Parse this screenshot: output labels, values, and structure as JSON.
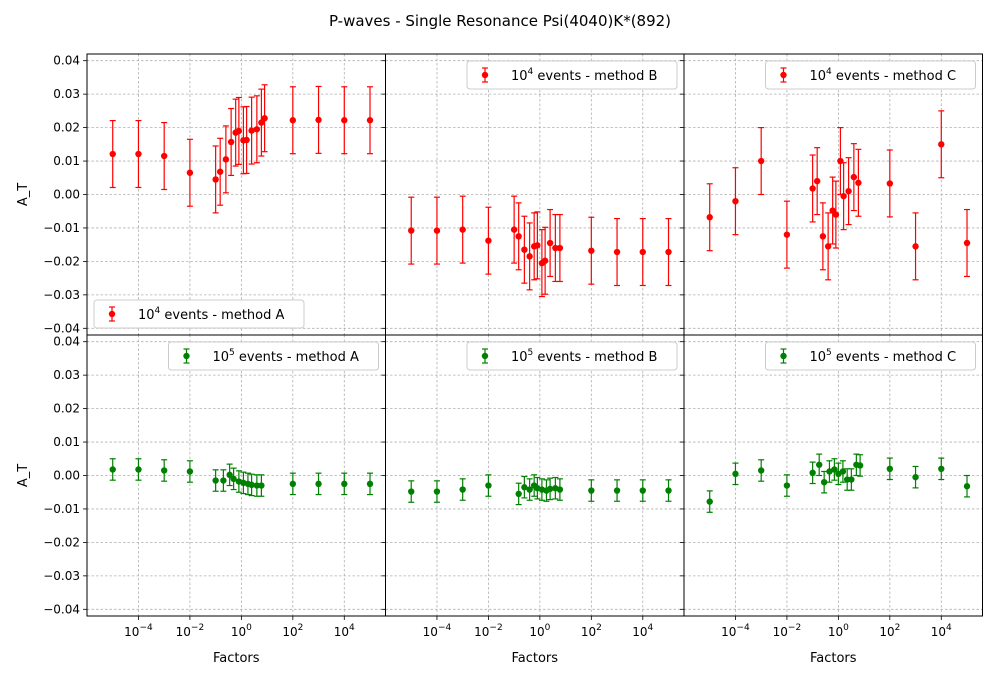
{
  "suptitle": "P-waves - Single Resonance Psi(4040)K*(892)",
  "colors": {
    "red": "#ff0000",
    "green": "#008000"
  },
  "chart_data": {
    "type": "scatter",
    "layout": {
      "rows": 2,
      "cols": 3,
      "sharex": true,
      "sharey": true
    },
    "xscale": "log",
    "xlim": [
      1e-06,
      400000.0
    ],
    "ylim": [
      -0.042,
      0.042
    ],
    "xticks": [
      {
        "value": 0.0001,
        "base": "10",
        "exp": "−4"
      },
      {
        "value": 0.01,
        "base": "10",
        "exp": "−2"
      },
      {
        "value": 1,
        "base": "10",
        "exp": "0"
      },
      {
        "value": 100,
        "base": "10",
        "exp": "2"
      },
      {
        "value": 10000,
        "base": "10",
        "exp": "4"
      }
    ],
    "yticks": [
      {
        "value": 0.04,
        "label": "0.04"
      },
      {
        "value": 0.03,
        "label": "0.03"
      },
      {
        "value": 0.02,
        "label": "0.02"
      },
      {
        "value": 0.01,
        "label": "0.01"
      },
      {
        "value": 0.0,
        "label": "0.00"
      },
      {
        "value": -0.01,
        "label": "−0.01"
      },
      {
        "value": -0.02,
        "label": "−0.02"
      },
      {
        "value": -0.03,
        "label": "−0.03"
      },
      {
        "value": -0.04,
        "label": "−0.04"
      }
    ],
    "xlabel": "Factors",
    "ylabel": "A_T",
    "grid": true,
    "panels": [
      {
        "row": 0,
        "col": 0,
        "color": "#ff0000",
        "legend": {
          "pre": "10",
          "sup": "4",
          "post": " events - method A",
          "loc": "lower-left"
        },
        "x": [
          1e-05,
          0.0001,
          0.001,
          0.01,
          0.1,
          0.15,
          0.25,
          0.4,
          0.6,
          0.8,
          1.2,
          1.6,
          2.5,
          4,
          6,
          8,
          100,
          1000,
          10000,
          100000
        ],
        "y": [
          0.0121,
          0.0121,
          0.0115,
          0.0065,
          0.0045,
          0.0068,
          0.0105,
          0.0157,
          0.0185,
          0.019,
          0.0162,
          0.0163,
          0.0191,
          0.0195,
          0.0215,
          0.0228,
          0.0222,
          0.0223,
          0.0222,
          0.0222
        ],
        "err": [
          0.01,
          0.01,
          0.01,
          0.01,
          0.01,
          0.01,
          0.01,
          0.01,
          0.01,
          0.01,
          0.01,
          0.01,
          0.01,
          0.01,
          0.01,
          0.01,
          0.01,
          0.01,
          0.01,
          0.01
        ]
      },
      {
        "row": 0,
        "col": 1,
        "color": "#ff0000",
        "legend": {
          "pre": "10",
          "sup": "4",
          "post": " events - method B",
          "loc": "upper-right"
        },
        "x": [
          1e-05,
          0.0001,
          0.001,
          0.01,
          0.1,
          0.15,
          0.25,
          0.4,
          0.6,
          0.8,
          1.2,
          1.6,
          2.5,
          4,
          6,
          100,
          1000,
          10000,
          100000
        ],
        "y": [
          -0.0108,
          -0.0108,
          -0.0105,
          -0.0138,
          -0.0105,
          -0.0125,
          -0.0165,
          -0.0185,
          -0.0155,
          -0.0152,
          -0.0205,
          -0.0198,
          -0.0145,
          -0.016,
          -0.016,
          -0.0168,
          -0.0172,
          -0.0172,
          -0.0172
        ],
        "err": [
          0.01,
          0.01,
          0.01,
          0.01,
          0.01,
          0.01,
          0.01,
          0.01,
          0.01,
          0.01,
          0.01,
          0.01,
          0.01,
          0.01,
          0.01,
          0.01,
          0.01,
          0.01,
          0.01
        ]
      },
      {
        "row": 0,
        "col": 2,
        "color": "#ff0000",
        "legend": {
          "pre": "10",
          "sup": "4",
          "post": " events - method C",
          "loc": "upper-right"
        },
        "x": [
          1e-05,
          0.0001,
          0.001,
          0.01,
          0.1,
          0.15,
          0.25,
          0.4,
          0.6,
          0.8,
          1.2,
          1.6,
          2.5,
          4,
          6,
          100,
          1000,
          10000,
          100000
        ],
        "y": [
          -0.0068,
          -0.002,
          0.01,
          -0.012,
          0.0018,
          0.004,
          -0.0125,
          -0.0155,
          -0.0048,
          -0.006,
          0.01,
          -0.0005,
          0.001,
          0.0052,
          0.0035,
          0.0033,
          -0.0155,
          0.015,
          -0.0145
        ],
        "err": [
          0.01,
          0.01,
          0.01,
          0.01,
          0.01,
          0.01,
          0.01,
          0.01,
          0.01,
          0.01,
          0.01,
          0.01,
          0.01,
          0.01,
          0.01,
          0.01,
          0.01,
          0.01,
          0.01
        ]
      },
      {
        "row": 1,
        "col": 0,
        "color": "#008000",
        "legend": {
          "pre": "10",
          "sup": "5",
          "post": " events - method A",
          "loc": "upper-right"
        },
        "x": [
          1e-05,
          0.0001,
          0.001,
          0.01,
          0.1,
          0.2,
          0.35,
          0.5,
          0.8,
          1.2,
          1.8,
          2.5,
          4,
          6,
          100,
          1000,
          10000,
          100000
        ],
        "y": [
          0.0018,
          0.0018,
          0.0015,
          0.0012,
          -0.0015,
          -0.0015,
          0.0002,
          -0.001,
          -0.0018,
          -0.0022,
          -0.0025,
          -0.0028,
          -0.003,
          -0.003,
          -0.0025,
          -0.0025,
          -0.0025,
          -0.0025
        ],
        "err": [
          0.0032,
          0.0032,
          0.0032,
          0.0032,
          0.0032,
          0.0032,
          0.0032,
          0.0032,
          0.0032,
          0.0032,
          0.0032,
          0.0032,
          0.0032,
          0.0032,
          0.0032,
          0.0032,
          0.0032,
          0.0032
        ]
      },
      {
        "row": 1,
        "col": 1,
        "color": "#008000",
        "legend": {
          "pre": "10",
          "sup": "5",
          "post": " events - method B",
          "loc": "upper-right"
        },
        "x": [
          1e-05,
          0.0001,
          0.001,
          0.01,
          0.15,
          0.25,
          0.4,
          0.6,
          0.8,
          1.2,
          1.8,
          2.5,
          4,
          6,
          100,
          1000,
          10000,
          100000
        ],
        "y": [
          -0.0048,
          -0.0048,
          -0.0042,
          -0.003,
          -0.0055,
          -0.0035,
          -0.0042,
          -0.003,
          -0.0038,
          -0.0042,
          -0.0045,
          -0.004,
          -0.0038,
          -0.0042,
          -0.0045,
          -0.0045,
          -0.0045,
          -0.0045
        ],
        "err": [
          0.0032,
          0.0032,
          0.0032,
          0.0032,
          0.0032,
          0.0032,
          0.0032,
          0.0032,
          0.0032,
          0.0032,
          0.0032,
          0.0032,
          0.0032,
          0.0032,
          0.0032,
          0.0032,
          0.0032,
          0.0032
        ]
      },
      {
        "row": 1,
        "col": 2,
        "color": "#008000",
        "legend": {
          "pre": "10",
          "sup": "5",
          "post": " events - method C",
          "loc": "upper-right"
        },
        "x": [
          1e-05,
          0.0001,
          0.001,
          0.01,
          0.1,
          0.18,
          0.28,
          0.45,
          0.7,
          1.0,
          1.5,
          2.2,
          3.2,
          5,
          7,
          100,
          1000,
          10000,
          100000
        ],
        "y": [
          -0.0078,
          0.0005,
          0.0015,
          -0.003,
          0.0008,
          0.0032,
          -0.002,
          0.0012,
          0.0018,
          0.0005,
          0.0012,
          -0.0012,
          -0.0012,
          0.0032,
          0.003,
          0.002,
          -0.0005,
          0.002,
          -0.0032
        ],
        "err": [
          0.0032,
          0.0032,
          0.0032,
          0.0032,
          0.0032,
          0.0032,
          0.0032,
          0.0032,
          0.0032,
          0.0032,
          0.0032,
          0.0032,
          0.0032,
          0.0032,
          0.0032,
          0.0032,
          0.0032,
          0.0032,
          0.0032
        ]
      }
    ]
  }
}
